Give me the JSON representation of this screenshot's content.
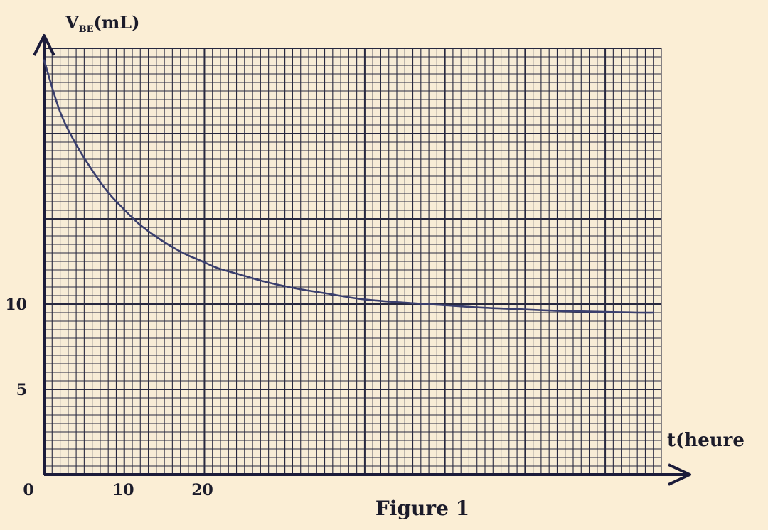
{
  "chart_data": {
    "type": "line",
    "title": "",
    "caption": "Figure 1",
    "xlabel": "t(heure",
    "ylabel_main": "V",
    "ylabel_sub": "BE",
    "ylabel_unit": "(mL)",
    "origin_label": "0",
    "x_ticks": [
      {
        "value": 10,
        "label": "10"
      },
      {
        "value": 20,
        "label": "20"
      }
    ],
    "y_ticks": [
      {
        "value": 5,
        "label": "5"
      },
      {
        "value": 10,
        "label": "10"
      }
    ],
    "xlim": [
      0,
      78
    ],
    "ylim": [
      0,
      25
    ],
    "grid": true,
    "curve_color": "#3a3f6e",
    "grid_color": "#27283f",
    "series": [
      {
        "x": [
          0,
          2,
          4,
          6,
          8,
          10,
          12,
          14,
          16,
          18,
          20,
          22,
          25,
          28,
          32,
          36,
          40,
          45,
          50,
          55,
          60,
          65,
          70,
          75,
          77
        ],
        "y": [
          24.3,
          21.3,
          19.4,
          17.9,
          16.6,
          15.6,
          14.7,
          14.0,
          13.4,
          12.9,
          12.5,
          12.1,
          11.7,
          11.3,
          10.9,
          10.6,
          10.3,
          10.1,
          9.95,
          9.8,
          9.7,
          9.6,
          9.55,
          9.5,
          9.5
        ]
      }
    ]
  }
}
